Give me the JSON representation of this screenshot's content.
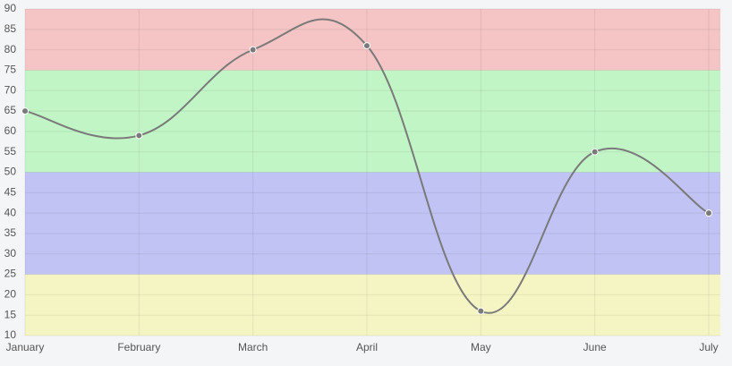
{
  "chart_data": {
    "type": "line",
    "categories": [
      "January",
      "February",
      "March",
      "April",
      "May",
      "June",
      "July"
    ],
    "series": [
      {
        "color": "#7a7a7a",
        "values": [
          65,
          59,
          80,
          81,
          16,
          55,
          40
        ]
      }
    ],
    "ylim": [
      10,
      90
    ],
    "yticks": [
      10,
      15,
      20,
      25,
      30,
      35,
      40,
      45,
      50,
      55,
      60,
      65,
      70,
      75,
      80,
      85,
      90
    ],
    "grid": true,
    "bands": [
      {
        "from": 10,
        "to": 25,
        "color": "#f5f5c3"
      },
      {
        "from": 25,
        "to": 50,
        "color": "#c1c3f5"
      },
      {
        "from": 50,
        "to": 75,
        "color": "#c2f5c6"
      },
      {
        "from": 75,
        "to": 90,
        "color": "#f5c4c4"
      }
    ]
  }
}
